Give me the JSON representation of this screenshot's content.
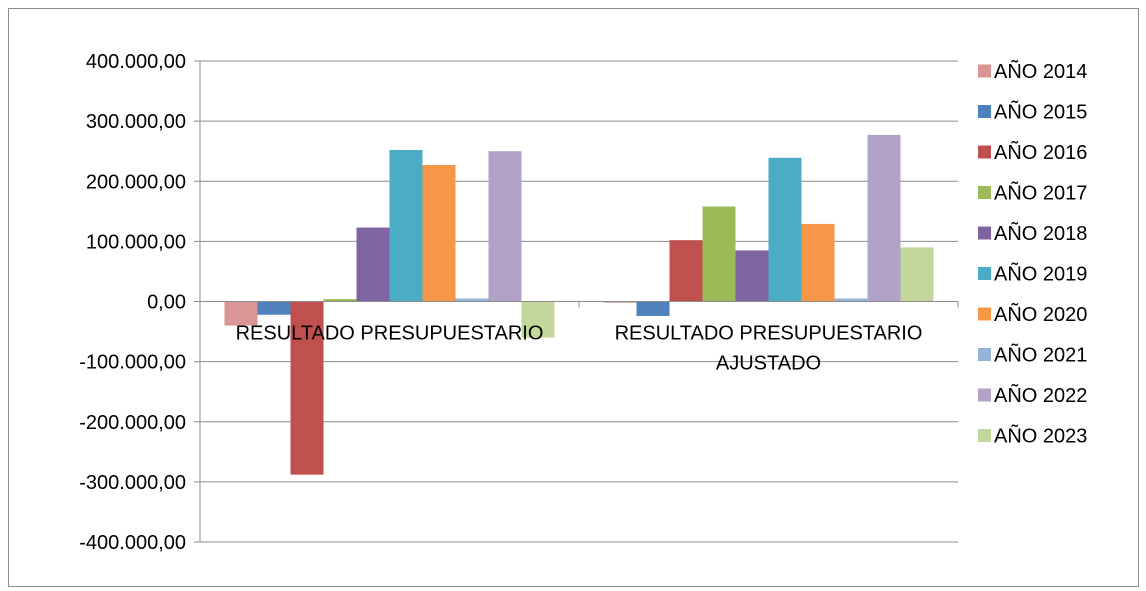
{
  "chart_data": {
    "type": "bar",
    "categories": [
      [
        "RESULTADO PRESUPUESTARIO"
      ],
      [
        "RESULTADO PRESUPUESTARIO",
        "AJUSTADO"
      ]
    ],
    "ylim": [
      -400000,
      400000
    ],
    "yticks": [
      400000,
      300000,
      200000,
      100000,
      0,
      -100000,
      -200000,
      -300000,
      -400000
    ],
    "ytick_labels": [
      "400.000,00",
      "300.000,00",
      "200.000,00",
      "100.000,00",
      "0,00",
      "-100.000,00",
      "-200.000,00",
      "-300.000,00",
      "-400.000,00"
    ],
    "grid": true,
    "legend_position": "right",
    "series": [
      {
        "name": "AÑO 2014",
        "color": "#d99694",
        "values": [
          -40000,
          -2000
        ]
      },
      {
        "name": "AÑO 2015",
        "color": "#4f81bd",
        "values": [
          -22000,
          -24000
        ]
      },
      {
        "name": "AÑO 2016",
        "color": "#c0504d",
        "values": [
          -288000,
          102000
        ]
      },
      {
        "name": "AÑO 2017",
        "color": "#9bbb59",
        "values": [
          4000,
          158000
        ]
      },
      {
        "name": "AÑO 2018",
        "color": "#8064a2",
        "values": [
          123000,
          85000
        ]
      },
      {
        "name": "AÑO 2019",
        "color": "#4bacc6",
        "values": [
          252000,
          239000
        ]
      },
      {
        "name": "AÑO 2020",
        "color": "#f79646",
        "values": [
          227000,
          129000
        ]
      },
      {
        "name": "AÑO 2021",
        "color": "#95b3d7",
        "values": [
          5000,
          5000
        ]
      },
      {
        "name": "AÑO 2022",
        "color": "#b2a2c7",
        "values": [
          250000,
          277000
        ]
      },
      {
        "name": "AÑO 2023",
        "color": "#c3d69b",
        "values": [
          -60000,
          90000
        ]
      }
    ]
  }
}
